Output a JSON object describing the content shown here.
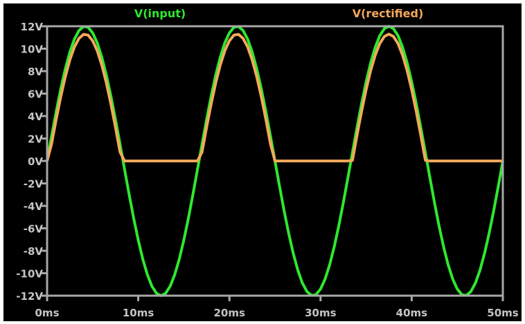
{
  "chart_data": {
    "type": "line",
    "title": "",
    "xlabel": "",
    "ylabel": "",
    "xlim": [
      0,
      50
    ],
    "ylim": [
      -12,
      12
    ],
    "grid": false,
    "legend_placement": "top",
    "background_color": "#000000",
    "axis_color": "#a8a8a8",
    "x_ticks": [
      0,
      10,
      20,
      30,
      40,
      50
    ],
    "x_tick_labels": [
      "0ms",
      "10ms",
      "20ms",
      "30ms",
      "40ms",
      "50ms"
    ],
    "y_ticks": [
      12,
      10,
      8,
      6,
      4,
      2,
      0,
      -2,
      -4,
      -6,
      -8,
      -10,
      -12
    ],
    "y_tick_labels": [
      "12V",
      "10V",
      "8V",
      "6V",
      "4V",
      "2V",
      "0V",
      "-2V",
      "-4V",
      "-6V",
      "-8V",
      "-10V",
      "-12V"
    ],
    "x_step_ms": 0.5,
    "series": [
      {
        "name": "V(input)",
        "color": "#2ee82e",
        "values": [
          0,
          2.25,
          4.42,
          6.43,
          8.21,
          9.71,
          10.86,
          11.62,
          11.98,
          11.91,
          11.41,
          10.52,
          9.25,
          7.65,
          5.78,
          3.71,
          1.5,
          -0.75,
          -2.98,
          -5.11,
          -7.05,
          -8.75,
          -10.13,
          -11.16,
          -11.79,
          -12,
          -11.79,
          -11.16,
          -10.13,
          -8.75,
          -7.05,
          -5.11,
          -2.98,
          -0.75,
          1.5,
          3.71,
          5.78,
          7.65,
          9.25,
          10.52,
          11.41,
          11.91,
          11.98,
          11.62,
          10.86,
          9.71,
          8.21,
          6.43,
          4.42,
          2.25,
          0,
          -2.25,
          -4.42,
          -6.43,
          -8.21,
          -9.71,
          -10.86,
          -11.62,
          -11.98,
          -11.91,
          -11.41,
          -10.52,
          -9.25,
          -7.65,
          -5.78,
          -3.71,
          -1.5,
          0.75,
          2.98,
          5.11,
          7.05,
          8.75,
          10.13,
          11.16,
          11.79,
          12,
          11.79,
          11.16,
          10.13,
          8.75,
          7.05,
          5.11,
          2.98,
          0.75,
          -1.5,
          -3.71,
          -5.78,
          -7.65,
          -9.25,
          -10.52,
          -11.41,
          -11.91,
          -11.98,
          -11.62,
          -10.86,
          -9.71,
          -8.21,
          -6.43,
          -4.42,
          -2.25,
          0
        ]
      },
      {
        "name": "V(rectified)",
        "color": "#f6a85a",
        "values": [
          0,
          1.55,
          3.72,
          5.73,
          7.51,
          9.01,
          10.16,
          10.92,
          11.28,
          11.21,
          10.71,
          9.82,
          8.55,
          6.95,
          5.08,
          3.01,
          0.8,
          0,
          0,
          0,
          0,
          0,
          0,
          0,
          0,
          0,
          0,
          0,
          0,
          0,
          0,
          0,
          0,
          0,
          0.8,
          3.01,
          5.08,
          6.95,
          8.55,
          9.82,
          10.71,
          11.21,
          11.28,
          10.92,
          10.16,
          9.01,
          7.51,
          5.73,
          3.72,
          1.55,
          0,
          0,
          0,
          0,
          0,
          0,
          0,
          0,
          0,
          0,
          0,
          0,
          0,
          0,
          0,
          0,
          0,
          0.05,
          2.28,
          4.41,
          6.35,
          8.05,
          9.43,
          10.46,
          11.09,
          11.3,
          11.09,
          10.46,
          9.43,
          8.05,
          6.35,
          4.41,
          2.28,
          0.05,
          0,
          0,
          0,
          0,
          0,
          0,
          0,
          0,
          0,
          0,
          0,
          0,
          0,
          0,
          0,
          0,
          0
        ]
      }
    ]
  }
}
